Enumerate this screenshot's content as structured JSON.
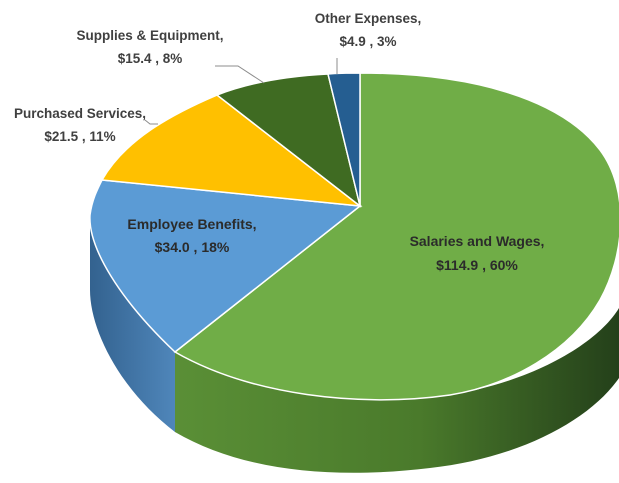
{
  "chart_data": {
    "type": "pie",
    "style": "3d-pie",
    "slices": [
      {
        "category": "Salaries and Wages",
        "value_label": "$114.9 , 60%",
        "value": 114.9,
        "percent": 60,
        "color": "#70ad47",
        "side_color": "#3f6b22"
      },
      {
        "category": "Employee Benefits",
        "value_label": "$34.0 , 18%",
        "value": 34.0,
        "percent": 18,
        "color": "#5b9bd5",
        "side_color": "#3e74a8"
      },
      {
        "category": "Purchased Services,",
        "value_label": "$21.5 , 11%",
        "value": 21.5,
        "percent": 11,
        "color": "#ffc000",
        "side_color": "#c79500"
      },
      {
        "category": "Supplies & Equipment,",
        "value_label": "$15.4 , 8%",
        "value": 15.4,
        "percent": 8,
        "color": "#3f6b22",
        "side_color": "#2c4d17"
      },
      {
        "category": "Other Expenses,",
        "value_label": "$4.9 , 3%",
        "value": 4.9,
        "percent": 3,
        "color": "#255e91",
        "side_color": "#1a4469"
      }
    ],
    "inside_labels": [
      {
        "line1": "Employee Benefits,",
        "line2": "$34.0 , 18%"
      },
      {
        "line1": "Salaries and Wages,",
        "line2": "$114.9 , 60%"
      }
    ],
    "outside_labels": [
      {
        "line1": "Other Expenses,",
        "line2": "$4.9 , 3%"
      },
      {
        "line1": "Supplies & Equipment,",
        "line2": "$15.4 , 8%"
      },
      {
        "line1": "Purchased Services,",
        "line2": "$21.5 , 11%"
      }
    ],
    "legend": "none"
  }
}
